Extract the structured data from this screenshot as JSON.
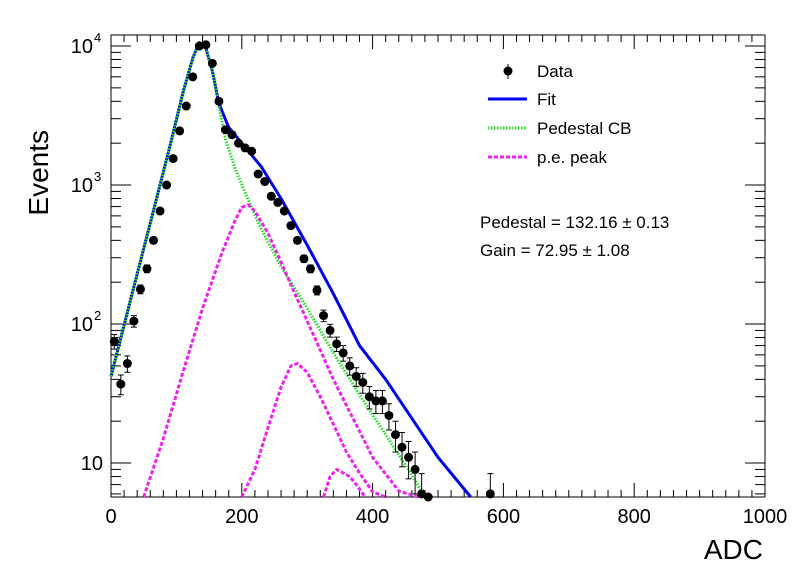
{
  "chart_data": {
    "type": "scatter",
    "title": "",
    "xlabel": "ADC",
    "ylabel": "Events",
    "xlim": [
      0,
      1000
    ],
    "ylim": [
      5.7,
      12000
    ],
    "yscale": "log",
    "xticks": [
      0,
      200,
      400,
      600,
      800,
      1000
    ],
    "yticks": [
      {
        "value": 10,
        "label": "10",
        "exp": ""
      },
      {
        "value": 100,
        "label": "10",
        "exp": "2"
      },
      {
        "value": 1000,
        "label": "10",
        "exp": "3"
      },
      {
        "value": 10000,
        "label": "10",
        "exp": "4"
      }
    ],
    "legend_position": "top-right",
    "legend": [
      {
        "label": "Data",
        "style": "marker",
        "color": "#000000"
      },
      {
        "label": "Fit",
        "style": "line",
        "color": "#0000ee"
      },
      {
        "label": "Pedestal CB",
        "style": "dotted",
        "color": "#22dd22"
      },
      {
        "label": "p.e. peak",
        "style": "dashed",
        "color": "#ee22ee"
      }
    ],
    "annotations": [
      "Pedestal = 132.16 ± 0.13",
      "Gain = 72.95 ± 1.08"
    ],
    "series": [
      {
        "name": "Data",
        "style": "errorbar",
        "color": "#000000",
        "x": [
          5,
          15,
          25,
          35,
          45,
          55,
          65,
          75,
          85,
          95,
          105,
          115,
          125,
          135,
          145,
          155,
          165,
          175,
          185,
          195,
          205,
          215,
          225,
          235,
          245,
          255,
          265,
          275,
          285,
          295,
          305,
          315,
          325,
          335,
          345,
          355,
          365,
          375,
          385,
          395,
          405,
          415,
          425,
          435,
          445,
          455,
          465,
          475,
          485,
          580
        ],
        "y": [
          75,
          37,
          52,
          105,
          178,
          250,
          400,
          650,
          1000,
          1550,
          2450,
          3700,
          6000,
          10000,
          10200,
          7500,
          4000,
          2500,
          2300,
          2000,
          1850,
          1750,
          1200,
          1060,
          830,
          750,
          650,
          510,
          400,
          295,
          250,
          175,
          115,
          90,
          72,
          62,
          50,
          42,
          38,
          30,
          28,
          28,
          22,
          16,
          13,
          11,
          9,
          6,
          4,
          6
        ],
        "yerr": [
          9,
          6,
          7,
          10,
          13,
          16,
          20,
          25,
          32,
          39,
          49,
          61,
          77,
          100,
          101,
          87,
          63,
          50,
          48,
          45,
          43,
          42,
          35,
          33,
          29,
          27,
          25,
          23,
          20,
          17,
          16,
          13,
          11,
          9.5,
          8.5,
          7.9,
          7.1,
          6.5,
          6.2,
          5.5,
          5.3,
          5.3,
          4.7,
          4,
          3.6,
          3.3,
          3,
          2.4,
          2,
          2.4
        ]
      },
      {
        "name": "Fit",
        "style": "line",
        "color": "#0000ee",
        "x": [
          0,
          30,
          60,
          90,
          110,
          125,
          135,
          145,
          155,
          165,
          180,
          200,
          230,
          260,
          300,
          340,
          380,
          420,
          460,
          500,
          550
        ],
        "y": [
          42,
          150,
          530,
          1900,
          4600,
          8200,
          10600,
          9700,
          6600,
          3850,
          2600,
          2000,
          1350,
          800,
          370,
          165,
          70,
          40,
          21,
          11,
          5.7
        ]
      },
      {
        "name": "Pedestal CB",
        "style": "dotted",
        "color": "#22dd22",
        "x": [
          0,
          30,
          60,
          90,
          110,
          125,
          135,
          145,
          155,
          165,
          175,
          190,
          210,
          230,
          260,
          300,
          340,
          380,
          420,
          460,
          480
        ],
        "y": [
          42,
          150,
          530,
          1900,
          4600,
          8200,
          10600,
          9700,
          6600,
          3700,
          2150,
          1300,
          780,
          480,
          260,
          130,
          62,
          31,
          16,
          8.2,
          5.7
        ]
      },
      {
        "name": "p.e. peak 1",
        "style": "dashed",
        "color": "#ee22ee",
        "x": [
          50,
          80,
          110,
          140,
          170,
          190,
          200,
          210,
          220,
          240,
          260,
          280,
          300,
          320,
          340,
          360,
          380,
          400,
          440,
          470
        ],
        "y": [
          5.7,
          15,
          45,
          130,
          330,
          560,
          690,
          720,
          650,
          450,
          280,
          170,
          105,
          65,
          40,
          26,
          17,
          11,
          6.3,
          5.7
        ]
      },
      {
        "name": "p.e. peak 2",
        "style": "dashed",
        "color": "#ee22ee",
        "x": [
          200,
          220,
          240,
          260,
          275,
          285,
          300,
          320,
          340,
          360,
          380,
          400,
          420
        ],
        "y": [
          5.7,
          9,
          18,
          35,
          50,
          52,
          45,
          30,
          19,
          12,
          8.5,
          6.2,
          5.7
        ]
      },
      {
        "name": "p.e. peak 3",
        "style": "dashed",
        "color": "#ee22ee",
        "x": [
          325,
          335,
          345,
          355,
          365,
          375,
          385,
          390
        ],
        "y": [
          5.7,
          8,
          9,
          8.5,
          8,
          7,
          6,
          5.7
        ]
      }
    ]
  }
}
